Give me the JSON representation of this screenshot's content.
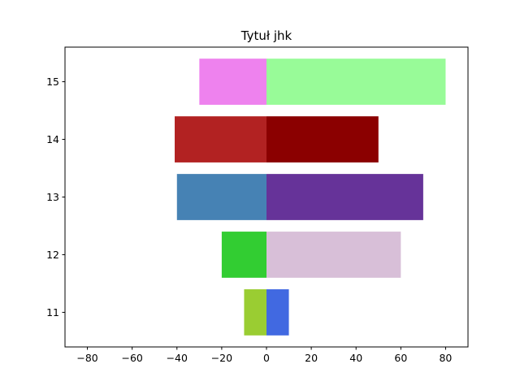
{
  "chart_data": {
    "type": "bar",
    "orientation": "horizontal",
    "title": "Tytuł jhk",
    "xlabel": "",
    "ylabel": "",
    "categories": [
      "11",
      "12",
      "13",
      "14",
      "15"
    ],
    "series": [
      {
        "values": [
          10,
          60,
          70,
          50,
          80
        ],
        "colors": [
          "#4169e1",
          "#d8bfd8",
          "#663399",
          "#8b0000",
          "#98fb98"
        ]
      },
      {
        "values": [
          -10,
          -20,
          -40,
          -41,
          -30
        ],
        "colors": [
          "#9acd32",
          "#32cd32",
          "#4682b4",
          "#b22222",
          "#ee82ee"
        ]
      }
    ],
    "xlim": [
      -90,
      90
    ],
    "ylim": [
      10.4,
      15.6
    ],
    "xticks": [
      "−80",
      "−60",
      "−40",
      "−20",
      "0",
      "20",
      "40",
      "60",
      "80"
    ],
    "yticks": [
      "11",
      "12",
      "13",
      "14",
      "15"
    ],
    "grid": false,
    "legend": "none"
  }
}
